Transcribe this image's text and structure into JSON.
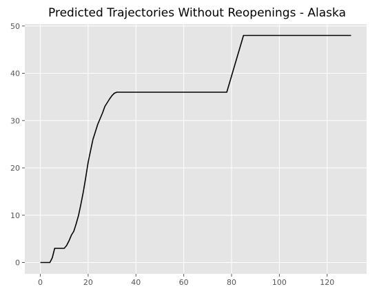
{
  "chart_data": {
    "type": "line",
    "title": "Predicted Trajectories Without Reopenings - Alaska",
    "xlabel": "",
    "ylabel": "",
    "xlim": [
      -6.5,
      136.5
    ],
    "ylim": [
      -2.4,
      50.4
    ],
    "x_ticks": [
      0,
      20,
      40,
      60,
      80,
      100,
      120
    ],
    "y_ticks": [
      0,
      10,
      20,
      30,
      40,
      50
    ],
    "grid": true,
    "colors": {
      "plot_background": "#e5e5e5",
      "grid": "#ffffff",
      "line": "#000000",
      "tick_text": "#555555"
    },
    "series": [
      {
        "x": [
          0,
          4,
          5,
          6,
          10,
          11,
          12,
          13,
          14,
          15,
          16,
          17,
          18,
          19,
          20,
          21,
          22,
          23,
          24,
          25,
          26,
          27,
          28,
          29,
          30,
          31,
          32,
          33,
          34,
          35,
          78,
          85,
          130
        ],
        "y": [
          0,
          0,
          1,
          3,
          3,
          3.6,
          4.6,
          5.8,
          6.6,
          8.2,
          10,
          12.4,
          15,
          18,
          21.2,
          23.6,
          26,
          27.6,
          29.2,
          30.4,
          31.6,
          33,
          33.8,
          34.6,
          35.3,
          35.8,
          36,
          36,
          36,
          36,
          36,
          48,
          48
        ]
      }
    ]
  }
}
